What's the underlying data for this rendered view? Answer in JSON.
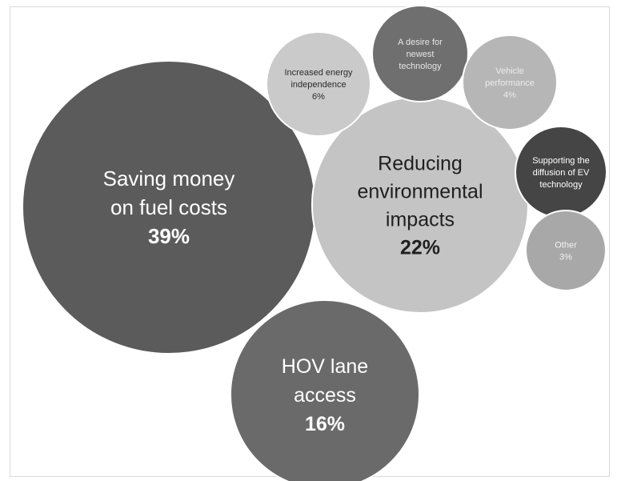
{
  "chart_data": {
    "type": "bubble",
    "title": "",
    "legend": "none",
    "items": [
      {
        "label_lines": [
          "Saving money",
          "on fuel costs"
        ],
        "value_label": "39%",
        "value": 39,
        "color": "#5b5b5b",
        "text_color": "#ffffff"
      },
      {
        "label_lines": [
          "Reducing",
          "environmental",
          "impacts"
        ],
        "value_label": "22%",
        "value": 22,
        "color": "#c4c4c4",
        "text_color": "#1f1f1f"
      },
      {
        "label_lines": [
          "HOV lane",
          "access"
        ],
        "value_label": "16%",
        "value": 16,
        "color": "#6a6a6a",
        "text_color": "#ffffff"
      },
      {
        "label_lines": [
          "Increased energy",
          "independence"
        ],
        "value_label": "6%",
        "value": 6,
        "color": "#cacaca",
        "text_color": "#2a2a2a"
      },
      {
        "label_lines": [
          "A desire for",
          "newest",
          "technology"
        ],
        "value_label": "",
        "value": null,
        "color": "#6f6f6f",
        "text_color": "#e6e6e6"
      },
      {
        "label_lines": [
          "Vehicle",
          "performance"
        ],
        "value_label": "4%",
        "value": 4,
        "color": "#b6b6b6",
        "text_color": "#ececec"
      },
      {
        "label_lines": [
          "Supporting the",
          "diffusion of EV",
          "technology"
        ],
        "value_label": "",
        "value": null,
        "color": "#454545",
        "text_color": "#ffffff"
      },
      {
        "label_lines": [
          "Other"
        ],
        "value_label": "3%",
        "value": 3,
        "color": "#a8a8a8",
        "text_color": "#f2f2f2"
      }
    ]
  }
}
